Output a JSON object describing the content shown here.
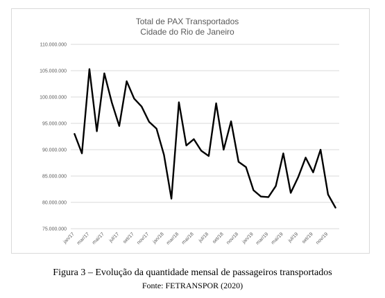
{
  "chart_data": {
    "type": "line",
    "title": "Total de PAX Transportados",
    "subtitle": "Cidade do Rio de Janeiro",
    "xlabel": "",
    "ylabel": "",
    "ylim": [
      75000000,
      110000000
    ],
    "yticks": [
      75000000,
      80000000,
      85000000,
      90000000,
      95000000,
      100000000,
      105000000,
      110000000
    ],
    "ytick_labels": [
      "75.000.000",
      "80.000.000",
      "85.000.000",
      "90.000.000",
      "95.000.000",
      "100.000.000",
      "105.000.000",
      "110.000.000"
    ],
    "x": [
      "jan/17",
      "fev/17",
      "mar/17",
      "abr/17",
      "mai/17",
      "jun/17",
      "jul/17",
      "ago/17",
      "set/17",
      "out/17",
      "nov/17",
      "dez/17",
      "jan/18",
      "fev/18",
      "mar/18",
      "abr/18",
      "mai/18",
      "jun/18",
      "jul/18",
      "ago/18",
      "set/18",
      "out/18",
      "nov/18",
      "dez/18",
      "jan/19",
      "fev/19",
      "mar/19",
      "abr/19",
      "mai/19",
      "jun/19",
      "jul/19",
      "ago/19",
      "set/19",
      "out/19",
      "nov/19",
      "dez/19"
    ],
    "xtick_labels": [
      "jan/17",
      "mar/17",
      "mai/17",
      "jul/17",
      "set/17",
      "nov/17",
      "jan/18",
      "mar/18",
      "mai/18",
      "jul/18",
      "set/18",
      "nov/18",
      "jan/19",
      "mar/19",
      "mai/19",
      "jul/19",
      "set/19",
      "nov/19"
    ],
    "grid": true,
    "legend": "none",
    "series": [
      {
        "color": "#000000",
        "values": [
          93000000,
          89300000,
          105300000,
          93500000,
          104500000,
          99000000,
          94500000,
          103000000,
          99700000,
          98200000,
          95300000,
          94000000,
          89000000,
          80700000,
          99000000,
          90800000,
          92000000,
          89800000,
          88800000,
          98800000,
          90000000,
          95400000,
          87700000,
          86700000,
          82300000,
          81100000,
          81000000,
          83100000,
          89300000,
          81800000,
          84800000,
          88500000,
          85700000,
          90000000,
          81500000,
          79000000
        ]
      }
    ]
  },
  "caption": "Figura 3 – Evolução da quantidade mensal de passageiros transportados",
  "source": "Fonte: FETRANSPOR (2020)"
}
